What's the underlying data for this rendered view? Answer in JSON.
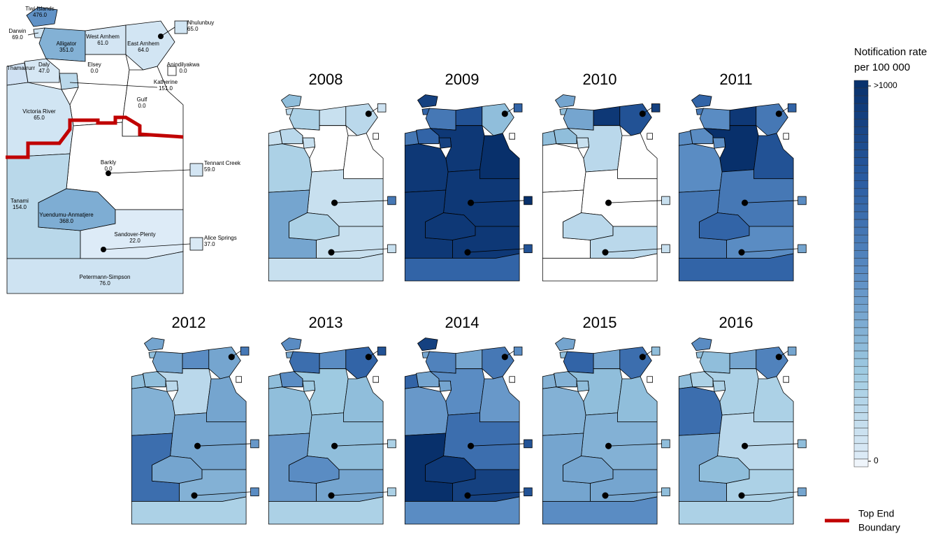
{
  "map": {
    "regions": [
      {
        "name": "Tiwi Islands",
        "value": 476,
        "label": "476.0"
      },
      {
        "name": "Darwin",
        "value": 69,
        "label": "69.0"
      },
      {
        "name": "Alligator",
        "value": 351,
        "label": "351.0"
      },
      {
        "name": "West Arnhem",
        "value": 61,
        "label": "61.0"
      },
      {
        "name": "East Arnhem",
        "value": 64,
        "label": "64.0"
      },
      {
        "name": "Nhulunbuy",
        "value": 65,
        "label": "65.0"
      },
      {
        "name": "Thamarrurr",
        "value": null
      },
      {
        "name": "Daly",
        "value": 47,
        "label": "47.0"
      },
      {
        "name": "Elsey",
        "value": 0,
        "label": "0.0"
      },
      {
        "name": "Anindilyakwa",
        "value": 0,
        "label": "0.0"
      },
      {
        "name": "Katherine",
        "value": 151,
        "label": "151.0"
      },
      {
        "name": "Gulf",
        "value": 0,
        "label": "0.0"
      },
      {
        "name": "Victoria River",
        "value": 65,
        "label": "65.0"
      },
      {
        "name": "Barkly",
        "value": 0,
        "label": "0.0"
      },
      {
        "name": "Tennant Creek",
        "value": 59,
        "label": "59.0"
      },
      {
        "name": "Tanami",
        "value": 154,
        "label": "154.0"
      },
      {
        "name": "Yuendumu-Anmatjere",
        "value": 368,
        "label": "368.0"
      },
      {
        "name": "Sandover-Plenty",
        "value": 22,
        "label": "22.0"
      },
      {
        "name": "Alice Springs",
        "value": 37,
        "label": "37.0"
      },
      {
        "name": "Petermann-Simpson",
        "value": 76,
        "label": "76.0"
      }
    ]
  },
  "years": [
    {
      "year": "2008",
      "values": [
        300,
        150,
        200,
        100,
        150,
        80,
        100,
        150,
        0,
        0,
        100,
        0,
        200,
        100,
        600,
        400,
        200,
        100,
        100,
        100
      ]
    },
    {
      "year": "2009",
      "values": [
        900,
        700,
        600,
        800,
        300,
        700,
        600,
        700,
        950,
        0,
        900,
        1000,
        950,
        950,
        1000,
        950,
        950,
        950,
        800,
        700
      ]
    },
    {
      "year": "2010",
      "values": [
        400,
        300,
        400,
        950,
        800,
        900,
        300,
        300,
        150,
        0,
        100,
        0,
        0,
        0,
        100,
        0,
        150,
        150,
        100,
        0
      ]
    },
    {
      "year": "2011",
      "values": [
        700,
        600,
        500,
        950,
        600,
        700,
        500,
        500,
        1000,
        0,
        500,
        800,
        500,
        600,
        500,
        600,
        700,
        500,
        400,
        700
      ]
    },
    {
      "year": "2012",
      "values": [
        400,
        300,
        400,
        500,
        400,
        600,
        300,
        300,
        150,
        0,
        150,
        400,
        350,
        400,
        450,
        650,
        400,
        350,
        500,
        200
      ]
    },
    {
      "year": "2013",
      "values": [
        500,
        400,
        650,
        500,
        700,
        800,
        300,
        500,
        250,
        0,
        250,
        300,
        300,
        300,
        200,
        450,
        500,
        400,
        200,
        200
      ]
    },
    {
      "year": "2014",
      "values": [
        900,
        400,
        550,
        400,
        600,
        500,
        700,
        400,
        500,
        0,
        400,
        450,
        450,
        650,
        800,
        1000,
        950,
        900,
        800,
        500
      ]
    },
    {
      "year": "2015",
      "values": [
        400,
        300,
        700,
        400,
        650,
        300,
        350,
        350,
        300,
        0,
        300,
        300,
        350,
        350,
        300,
        400,
        400,
        400,
        300,
        500
      ]
    },
    {
      "year": "2016",
      "values": [
        500,
        300,
        300,
        400,
        550,
        400,
        300,
        200,
        200,
        0,
        200,
        200,
        650,
        150,
        300,
        400,
        300,
        200,
        400,
        200
      ]
    }
  ],
  "legend": {
    "title": [
      "Notification rate",
      "per 100 000"
    ],
    "lim": [
      0,
      1000
    ],
    "ticks": [
      {
        "value": 1000,
        "label": ">1000"
      },
      0
    ]
  },
  "boundary": {
    "label": [
      "Top End",
      "Boundary"
    ],
    "color": "#c00000"
  }
}
